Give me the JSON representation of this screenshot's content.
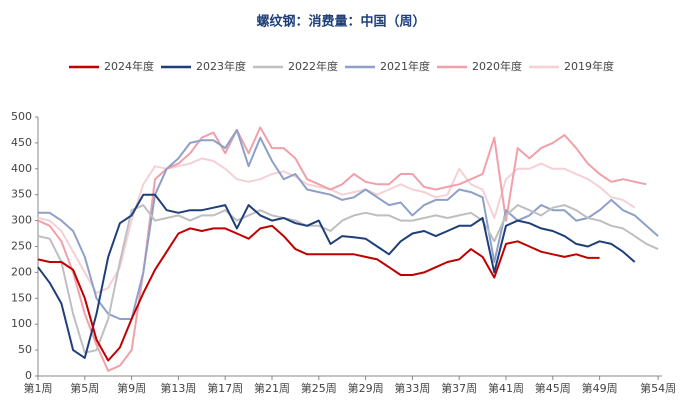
{
  "chart_data": {
    "type": "line",
    "title": "螺纹钢：消费量：中国（周）",
    "categories": [
      "第1周",
      null,
      null,
      null,
      "第5周",
      null,
      null,
      null,
      "第9周",
      null,
      null,
      null,
      "第13周",
      null,
      null,
      null,
      "第17周",
      null,
      null,
      null,
      "第21周",
      null,
      null,
      null,
      "第25周",
      null,
      null,
      null,
      "第29周",
      null,
      null,
      null,
      "第33周",
      null,
      null,
      null,
      "第37周",
      null,
      null,
      null,
      "第41周",
      null,
      null,
      null,
      "第45周",
      null,
      null,
      null,
      "第49周",
      null,
      null,
      null,
      null,
      "第54周"
    ],
    "ylim": [
      0,
      500
    ],
    "yticks": [
      0,
      50,
      100,
      150,
      200,
      250,
      300,
      350,
      400,
      450,
      500
    ],
    "legend": "top",
    "series": [
      {
        "name": "2024年度",
        "color": "#c00000",
        "values": [
          225,
          220,
          220,
          205,
          150,
          70,
          30,
          55,
          110,
          160,
          205,
          240,
          275,
          285,
          280,
          285,
          285,
          275,
          265,
          285,
          290,
          270,
          245,
          235,
          235,
          235,
          235,
          235,
          230,
          225,
          210,
          195,
          195,
          200,
          210,
          220,
          225,
          245,
          230,
          190,
          255,
          260,
          250,
          240,
          235,
          230,
          235,
          228,
          228,
          null,
          null,
          null,
          null,
          null
        ]
      },
      {
        "name": "2023年度",
        "color": "#1f3f7a",
        "values": [
          210,
          180,
          140,
          50,
          35,
          120,
          230,
          295,
          310,
          350,
          350,
          320,
          315,
          320,
          320,
          325,
          330,
          285,
          330,
          310,
          300,
          305,
          295,
          290,
          300,
          255,
          270,
          268,
          265,
          250,
          235,
          260,
          275,
          280,
          270,
          280,
          290,
          290,
          305,
          200,
          290,
          300,
          295,
          285,
          280,
          270,
          255,
          250,
          260,
          255,
          240,
          220,
          null,
          null
        ]
      },
      {
        "name": "2022年度",
        "color": "#bfbfbf",
        "values": [
          270,
          265,
          220,
          120,
          45,
          50,
          110,
          220,
          320,
          330,
          300,
          305,
          310,
          300,
          310,
          310,
          320,
          300,
          310,
          320,
          310,
          305,
          300,
          290,
          290,
          280,
          300,
          310,
          315,
          310,
          310,
          300,
          300,
          305,
          310,
          305,
          310,
          315,
          300,
          260,
          310,
          330,
          320,
          310,
          325,
          330,
          320,
          305,
          300,
          290,
          285,
          270,
          255,
          245
        ]
      },
      {
        "name": "2021年度",
        "color": "#8ea0c8",
        "values": [
          315,
          315,
          300,
          280,
          230,
          150,
          120,
          110,
          110,
          200,
          350,
          400,
          420,
          450,
          455,
          455,
          440,
          475,
          405,
          460,
          415,
          380,
          390,
          360,
          355,
          350,
          340,
          345,
          360,
          345,
          330,
          335,
          310,
          330,
          340,
          340,
          360,
          355,
          345,
          220,
          320,
          300,
          310,
          330,
          320,
          320,
          300,
          305,
          320,
          340,
          320,
          310,
          290,
          270
        ]
      },
      {
        "name": "2020年度",
        "color": "#f0a0a8",
        "values": [
          300,
          290,
          260,
          200,
          120,
          60,
          10,
          20,
          50,
          200,
          380,
          400,
          410,
          430,
          460,
          470,
          430,
          475,
          430,
          480,
          440,
          440,
          420,
          380,
          370,
          360,
          370,
          390,
          375,
          370,
          370,
          390,
          390,
          365,
          360,
          365,
          370,
          380,
          390,
          460,
          300,
          440,
          420,
          440,
          450,
          465,
          440,
          410,
          390,
          375,
          380,
          375,
          370,
          null
        ]
      },
      {
        "name": "2019年度",
        "color": "#f5d0d5",
        "values": [
          305,
          300,
          280,
          240,
          200,
          160,
          170,
          210,
          300,
          370,
          405,
          400,
          405,
          410,
          420,
          415,
          400,
          380,
          375,
          380,
          390,
          395,
          385,
          370,
          365,
          360,
          350,
          355,
          360,
          350,
          360,
          370,
          360,
          355,
          345,
          350,
          400,
          370,
          360,
          305,
          380,
          400,
          400,
          410,
          400,
          400,
          390,
          380,
          365,
          345,
          340,
          325,
          null,
          null
        ]
      }
    ]
  }
}
